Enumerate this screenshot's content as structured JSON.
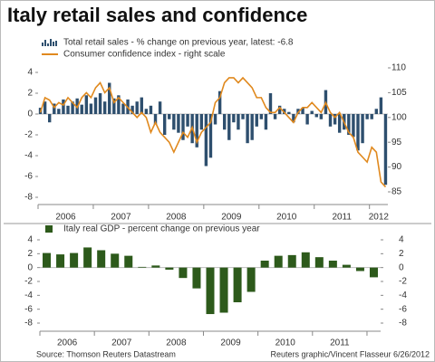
{
  "title": "Italy retail sales and confidence",
  "source": "Source: Thomson Reuters Datastream",
  "credit": "Reuters graphic/Vincent Flasseur 6/26/2012",
  "chart_data": [
    {
      "type": "bar",
      "categories": [
        null,
        null,
        null,
        null,
        null,
        "2006",
        null,
        null,
        null,
        null,
        null,
        null,
        null,
        null,
        null,
        null,
        null,
        "2007",
        null,
        null,
        null,
        null,
        null,
        null,
        null,
        null,
        null,
        null,
        null,
        "2008",
        null,
        null,
        null,
        null,
        null,
        null,
        null,
        null,
        null,
        null,
        null,
        "2009",
        null,
        null,
        null,
        null,
        null,
        null,
        null,
        null,
        null,
        null,
        null,
        "2010",
        null,
        null,
        null,
        null,
        null,
        null,
        null,
        null,
        null,
        null,
        null,
        "2011",
        null,
        null,
        null,
        null,
        null,
        null,
        null,
        "2012",
        null,
        null
      ],
      "series": [
        {
          "name": "Total retail sales - % change on previous year, latest: -6.8",
          "type": "bar",
          "color": "#2e4f6e",
          "values": [
            0.6,
            1.2,
            -0.8,
            1.0,
            0.5,
            1.4,
            0.8,
            1.2,
            1.5,
            0.9,
            1.8,
            1.0,
            1.6,
            2.0,
            1.2,
            3.0,
            1.5,
            1.8,
            1.0,
            1.4,
            0.8,
            1.2,
            1.6,
            0.5,
            0.8,
            -1.0,
            1.2,
            -2.0,
            -0.5,
            -1.5,
            -1.8,
            -2.5,
            -1.2,
            -2.8,
            -3.2,
            -1.5,
            -5.0,
            -4.2,
            -1.0,
            2.2,
            -1.5,
            -2.5,
            -0.8,
            -1.5,
            -0.5,
            -2.8,
            -2.5,
            -1.2,
            -0.5,
            -1.5,
            2.0,
            -0.5,
            0.8,
            0.5,
            0.2,
            -0.8,
            0.5,
            0.6,
            -1.0,
            0.3,
            -0.3,
            -0.5,
            2.3,
            -1.2,
            -1.0,
            -1.8,
            -1.5,
            -2.0,
            -2.2,
            -3.5,
            -2.8,
            -0.5,
            -0.5,
            0.5,
            1.6,
            -6.8
          ]
        },
        {
          "name": "Consumer confidence index - right scale",
          "type": "line",
          "axis": "y2",
          "color": "#e0891e",
          "values": [
            101,
            104,
            103.5,
            102,
            103,
            102.5,
            104,
            103,
            102,
            104,
            105,
            104,
            106,
            107,
            105,
            106,
            103,
            104,
            103,
            102,
            101,
            100,
            101,
            100,
            97,
            99,
            97,
            96,
            95,
            93,
            95,
            97,
            96,
            98,
            95,
            97,
            98,
            99,
            103,
            104,
            107,
            108,
            108,
            107,
            108,
            107,
            106,
            104,
            104,
            102,
            101,
            101,
            102,
            101,
            100,
            99,
            101,
            102,
            102,
            103,
            102,
            101,
            103,
            101,
            100,
            101,
            99,
            97,
            96,
            93,
            92,
            91,
            94,
            93,
            87,
            86
          ]
        }
      ],
      "ylim": [
        -8,
        4
      ],
      "yticks": [
        -8,
        -6,
        -4,
        -2,
        0,
        2,
        4
      ],
      "y2lim": [
        85,
        110
      ],
      "y2ticks": [
        85,
        90,
        95,
        100,
        105,
        110
      ]
    },
    {
      "type": "bar",
      "categories": [
        null,
        "2006",
        null,
        null,
        null,
        "2007",
        null,
        null,
        null,
        "2008",
        null,
        null,
        null,
        "2009",
        null,
        null,
        null,
        "2010",
        null,
        null,
        null,
        "2011",
        null,
        null,
        null
      ],
      "series": [
        {
          "name": "Italy real GDP - percent change on previous year",
          "type": "bar",
          "color": "#2d5a1b",
          "values": [
            2.1,
            1.9,
            2.1,
            2.9,
            2.5,
            2.0,
            1.7,
            0.1,
            0.3,
            -0.3,
            -1.5,
            -3.0,
            -6.7,
            -6.5,
            -5.0,
            -3.5,
            1.0,
            1.7,
            1.8,
            2.2,
            1.5,
            1.0,
            0.4,
            -0.5,
            -1.4
          ]
        }
      ],
      "ylim": [
        -8,
        4
      ],
      "yticks": [
        -8,
        -6,
        -4,
        -2,
        0,
        2,
        4
      ],
      "y2lim": [
        -8,
        4
      ],
      "y2ticks": [
        -8,
        -6,
        -4,
        -2,
        0,
        2,
        4
      ]
    }
  ]
}
